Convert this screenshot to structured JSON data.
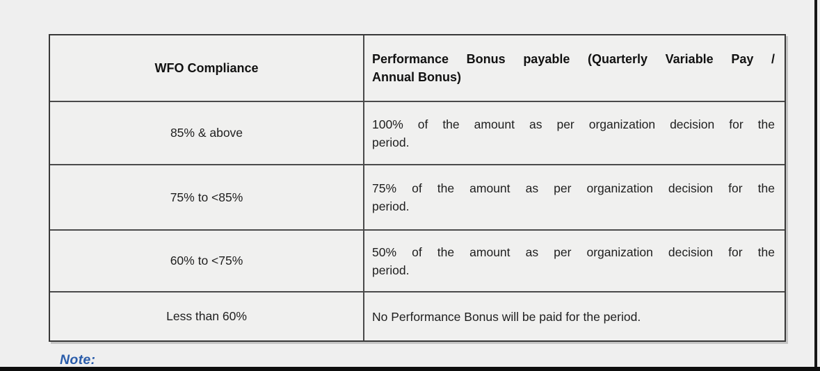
{
  "page": {
    "background_color": "#efefef",
    "note_color": "#2a5caa",
    "border_color": "#383838"
  },
  "table": {
    "col1_header": "WFO Compliance",
    "col2_header_line1": "Performance Bonus payable (Quarterly Variable Pay /",
    "col2_header_line2": "Annual Bonus)",
    "rows": [
      {
        "compliance": "85% & above",
        "bonus_line1": "100% of the amount as per organization decision for the",
        "bonus_line2": "period."
      },
      {
        "compliance": "75% to <85%",
        "bonus_line1": "75% of the amount as per organization decision for the",
        "bonus_line2": "period."
      },
      {
        "compliance": "60% to <75%",
        "bonus_line1": "50% of the amount as per organization decision for the",
        "bonus_line2": "period."
      },
      {
        "compliance": "Less than 60%",
        "bonus_single_line": "No Performance Bonus will be paid for the period."
      }
    ]
  },
  "note_label": "Note:"
}
